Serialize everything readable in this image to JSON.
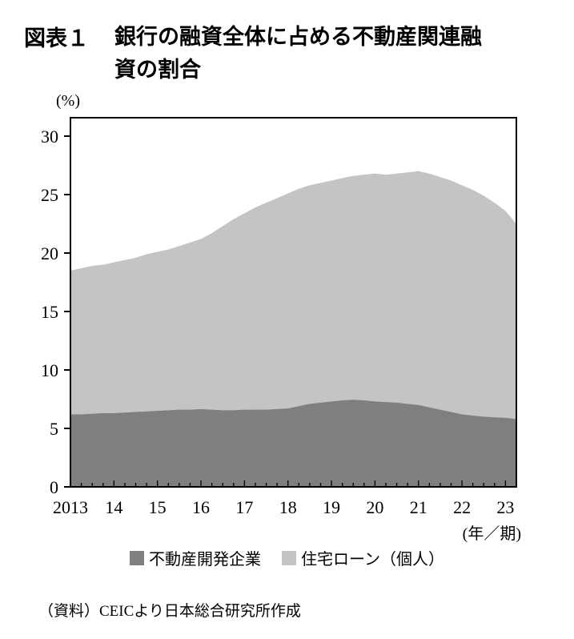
{
  "figure": {
    "label": "図表１",
    "title_lines": [
      "銀行の融資全体に占める不動産関連融",
      "資の割合"
    ],
    "unit_label": "(%)",
    "axis_note": "(年／期)",
    "source": "（資料）CEICより日本総合研究所作成"
  },
  "legend": [
    {
      "label": "不動産開発企業",
      "color": "#7f7f7f"
    },
    {
      "label": "住宅ローン（個人）",
      "color": "#c4c4c4"
    }
  ],
  "chart_data": {
    "type": "area",
    "stacked": true,
    "title": "銀行の融資全体に占める不動産関連融資の割合",
    "xlabel": "(年／期)",
    "ylabel": "(%)",
    "ylim": [
      0,
      30
    ],
    "y_ticks": [
      0,
      5,
      10,
      15,
      20,
      25,
      30
    ],
    "x_tick_labels": [
      "2013",
      "14",
      "15",
      "16",
      "17",
      "18",
      "19",
      "20",
      "21",
      "22",
      "23"
    ],
    "points_per_year": 4,
    "grid": false,
    "legend_position": "bottom",
    "series": [
      {
        "name": "不動産開発企業",
        "color": "#7f7f7f",
        "values": [
          6.2,
          6.2,
          6.25,
          6.3,
          6.3,
          6.35,
          6.4,
          6.45,
          6.5,
          6.55,
          6.6,
          6.6,
          6.65,
          6.6,
          6.55,
          6.55,
          6.6,
          6.6,
          6.6,
          6.65,
          6.7,
          6.9,
          7.1,
          7.2,
          7.3,
          7.4,
          7.45,
          7.4,
          7.3,
          7.25,
          7.2,
          7.1,
          7.0,
          6.8,
          6.6,
          6.4,
          6.2,
          6.1,
          6.0,
          5.95,
          5.9,
          5.8
        ]
      },
      {
        "name": "住宅ローン（個人）",
        "color": "#c4c4c4",
        "values": [
          12.3,
          12.5,
          12.65,
          12.7,
          12.9,
          13.05,
          13.2,
          13.45,
          13.6,
          13.75,
          14.0,
          14.3,
          14.55,
          15.1,
          15.75,
          16.35,
          16.8,
          17.3,
          17.7,
          18.05,
          18.4,
          18.6,
          18.7,
          18.8,
          18.9,
          19.0,
          19.15,
          19.3,
          19.5,
          19.45,
          19.6,
          19.8,
          20.0,
          20.0,
          19.9,
          19.8,
          19.6,
          19.3,
          18.9,
          18.35,
          17.7,
          16.7
        ]
      }
    ]
  }
}
